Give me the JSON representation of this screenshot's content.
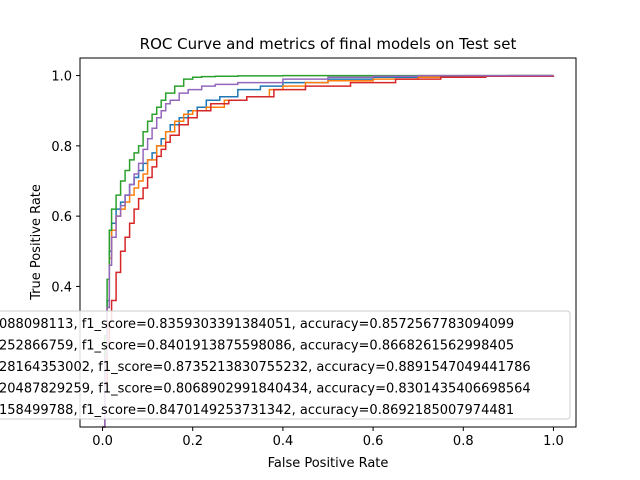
{
  "chart_data": {
    "type": "line",
    "title": "ROC Curve and metrics of final models on Test set",
    "xlabel": "False Positive Rate",
    "ylabel": "True Positive Rate",
    "xlim": [
      -0.05,
      1.05
    ],
    "ylim": [
      0.0,
      1.05
    ],
    "xticks": [
      "0.0",
      "0.2",
      "0.4",
      "0.6",
      "0.8",
      "1.0"
    ],
    "yticks": [
      "0.4",
      "0.6",
      "0.8",
      "1.0"
    ],
    "grid": false,
    "legend_position": "lower-center",
    "series": [
      {
        "name": "088098113, f1_score=0.8359303391384051, accuracy=0.8572567783094099",
        "color": "#1f77b4",
        "x": [
          0,
          0.005,
          0.01,
          0.015,
          0.02,
          0.03,
          0.04,
          0.05,
          0.06,
          0.07,
          0.08,
          0.09,
          0.1,
          0.11,
          0.12,
          0.13,
          0.14,
          0.15,
          0.17,
          0.19,
          0.21,
          0.23,
          0.26,
          0.3,
          0.35,
          0.4,
          0.5,
          0.6,
          0.7,
          0.8,
          0.9,
          1.0
        ],
        "y": [
          0,
          0.22,
          0.36,
          0.5,
          0.58,
          0.62,
          0.64,
          0.66,
          0.69,
          0.71,
          0.73,
          0.75,
          0.76,
          0.78,
          0.8,
          0.82,
          0.84,
          0.86,
          0.88,
          0.9,
          0.91,
          0.93,
          0.94,
          0.96,
          0.97,
          0.98,
          0.99,
          0.995,
          0.997,
          0.999,
          1.0,
          1.0
        ]
      },
      {
        "name": "252866759, f1_score=0.8401913875598086, accuracy=0.8668261562998405",
        "color": "#ff7f0e",
        "x": [
          0,
          0.005,
          0.01,
          0.015,
          0.02,
          0.03,
          0.04,
          0.05,
          0.06,
          0.07,
          0.08,
          0.09,
          0.1,
          0.12,
          0.14,
          0.16,
          0.18,
          0.2,
          0.23,
          0.27,
          0.32,
          0.37,
          0.4,
          0.45,
          0.5,
          0.6,
          0.7,
          0.8,
          0.9,
          1.0
        ],
        "y": [
          0,
          0.2,
          0.34,
          0.48,
          0.56,
          0.6,
          0.62,
          0.64,
          0.66,
          0.68,
          0.7,
          0.72,
          0.76,
          0.8,
          0.84,
          0.87,
          0.89,
          0.9,
          0.91,
          0.93,
          0.94,
          0.96,
          0.97,
          0.98,
          0.985,
          0.99,
          0.995,
          0.998,
          1.0,
          1.0
        ]
      },
      {
        "name": "28164353002, f1_score=0.8735213830755232, accuracy=0.8891547049441786",
        "color": "#2ca02c",
        "x": [
          0,
          0.005,
          0.01,
          0.015,
          0.02,
          0.03,
          0.04,
          0.05,
          0.06,
          0.07,
          0.08,
          0.09,
          0.1,
          0.11,
          0.12,
          0.13,
          0.14,
          0.16,
          0.18,
          0.2,
          0.22,
          0.25,
          0.3,
          0.4,
          0.5,
          0.6,
          0.7,
          0.8,
          0.9,
          1.0
        ],
        "y": [
          0,
          0.26,
          0.42,
          0.56,
          0.62,
          0.66,
          0.7,
          0.73,
          0.76,
          0.78,
          0.8,
          0.84,
          0.87,
          0.89,
          0.91,
          0.93,
          0.95,
          0.97,
          0.99,
          0.995,
          0.997,
          0.998,
          0.999,
          1.0,
          1.0,
          1.0,
          1.0,
          1.0,
          1.0,
          1.0
        ]
      },
      {
        "name": "20487829259, f1_score=0.8068902991840434, accuracy=0.8301435406698564",
        "color": "#d62728",
        "x": [
          0,
          0.005,
          0.01,
          0.015,
          0.02,
          0.03,
          0.04,
          0.05,
          0.06,
          0.07,
          0.08,
          0.09,
          0.1,
          0.11,
          0.12,
          0.13,
          0.14,
          0.15,
          0.17,
          0.19,
          0.21,
          0.24,
          0.28,
          0.32,
          0.38,
          0.45,
          0.55,
          0.65,
          0.75,
          0.85,
          1.0
        ],
        "y": [
          0,
          0.12,
          0.24,
          0.3,
          0.36,
          0.44,
          0.5,
          0.54,
          0.58,
          0.62,
          0.65,
          0.68,
          0.71,
          0.74,
          0.77,
          0.79,
          0.81,
          0.83,
          0.86,
          0.88,
          0.9,
          0.92,
          0.93,
          0.94,
          0.96,
          0.97,
          0.98,
          0.99,
          0.995,
          0.998,
          1.0
        ]
      },
      {
        "name": "158499788, f1_score=0.8470149253731342, accuracy=0.8692185007974481",
        "color": "#9467bd",
        "x": [
          0,
          0.005,
          0.01,
          0.015,
          0.02,
          0.03,
          0.04,
          0.05,
          0.06,
          0.07,
          0.08,
          0.09,
          0.1,
          0.11,
          0.12,
          0.13,
          0.14,
          0.15,
          0.17,
          0.19,
          0.22,
          0.25,
          0.3,
          0.4,
          0.5,
          0.6,
          0.7,
          0.8,
          0.9,
          1.0
        ],
        "y": [
          0,
          0.2,
          0.34,
          0.46,
          0.54,
          0.6,
          0.63,
          0.66,
          0.69,
          0.72,
          0.75,
          0.79,
          0.82,
          0.85,
          0.88,
          0.9,
          0.92,
          0.93,
          0.95,
          0.96,
          0.97,
          0.975,
          0.98,
          0.99,
          0.995,
          0.998,
          1.0,
          1.0,
          1.0,
          1.0
        ]
      }
    ]
  }
}
